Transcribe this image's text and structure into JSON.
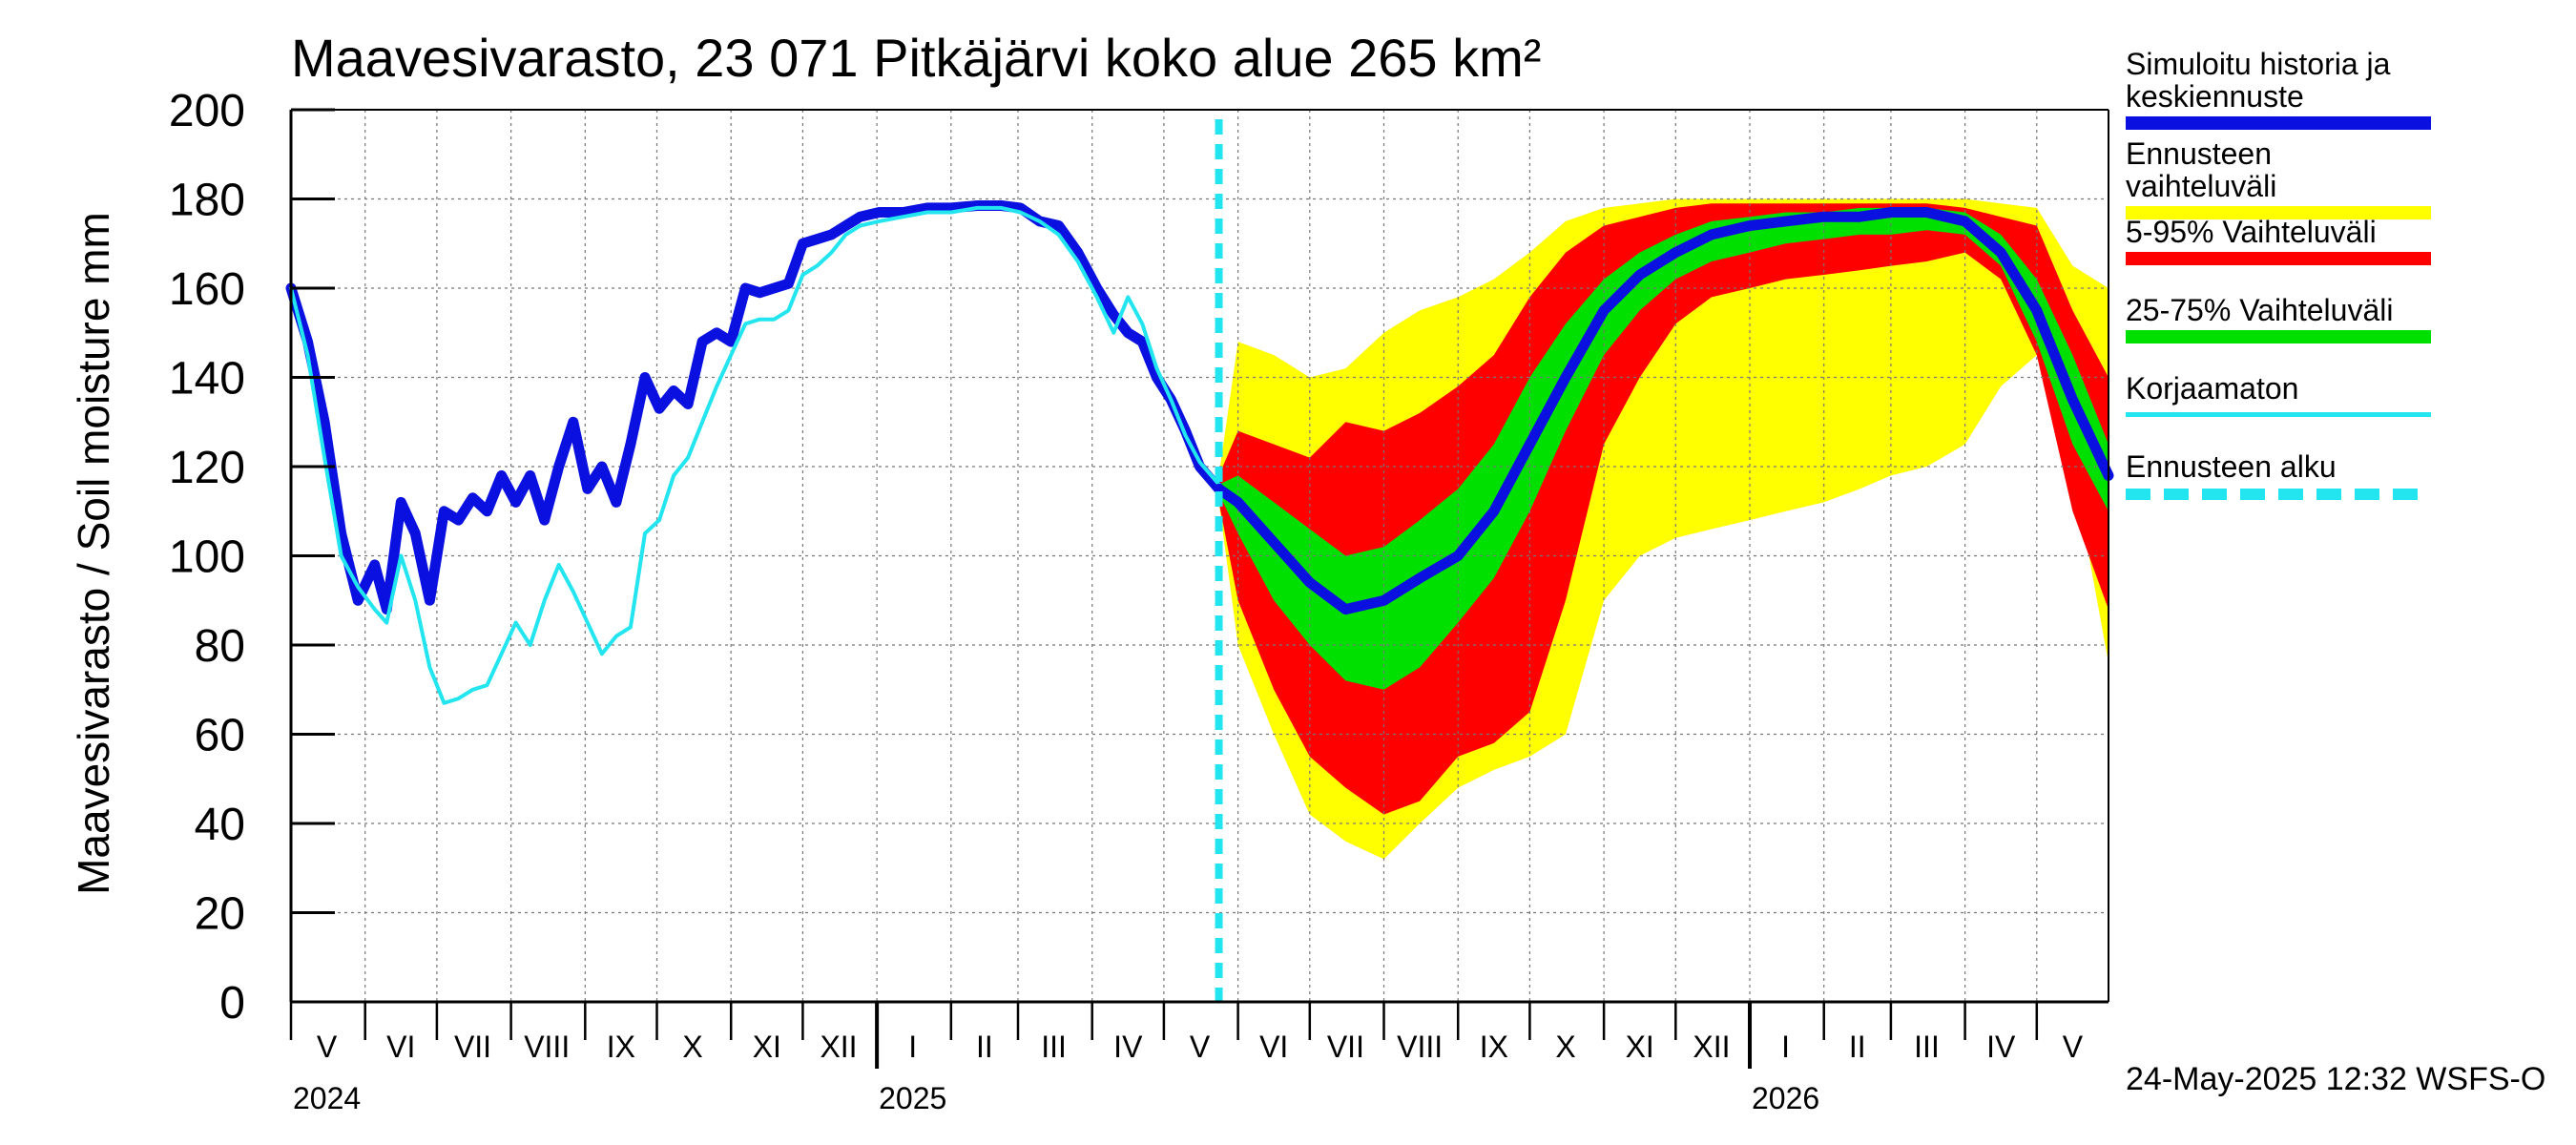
{
  "title": "Maavesivarasto, 23 071 Pitkäjärvi koko alue 265 km²",
  "ylabel": "Maavesivarasto / Soil moisture   mm",
  "footer": "24-May-2025 12:32 WSFS-O",
  "colors": {
    "history": "#0a10e0",
    "range": "#ffff00",
    "p5_95": "#ff0000",
    "p25_75": "#00e000",
    "uncorrected": "#22e5f0",
    "forecast_start": "#22e5f0"
  },
  "legend": [
    {
      "label": "Simuloitu historia ja keskiennuste",
      "key": "history"
    },
    {
      "label": "Ennusteen vaihteluväli",
      "key": "range"
    },
    {
      "label": "5-95% Vaihteluväli",
      "key": "p5_95"
    },
    {
      "label": "25-75% Vaihteluväli",
      "key": "p25_75"
    },
    {
      "label": "Korjaamaton",
      "key": "uncorrected"
    },
    {
      "label": "Ennusteen alku",
      "key": "forecast_start"
    }
  ],
  "chart_data": {
    "type": "area",
    "title": "Maavesivarasto, 23 071 Pitkäjärvi koko alue 265 km²",
    "ylabel": "Maavesivarasto / Soil moisture   mm",
    "ylim": [
      0,
      200
    ],
    "yticks": [
      0,
      20,
      40,
      60,
      80,
      100,
      120,
      140,
      160,
      180,
      200
    ],
    "xlim": [
      "2024-05-01",
      "2026-05-31"
    ],
    "grid": true,
    "legend_position": "right",
    "month_labels": [
      {
        "label": "V",
        "date": "2024-05-16"
      },
      {
        "label": "VI",
        "date": "2024-06-16"
      },
      {
        "label": "VII",
        "date": "2024-07-16"
      },
      {
        "label": "VIII",
        "date": "2024-08-16"
      },
      {
        "label": "IX",
        "date": "2024-09-16"
      },
      {
        "label": "X",
        "date": "2024-10-16"
      },
      {
        "label": "XI",
        "date": "2024-11-16"
      },
      {
        "label": "XII",
        "date": "2024-12-16"
      },
      {
        "label": "I",
        "date": "2025-01-16"
      },
      {
        "label": "II",
        "date": "2025-02-15"
      },
      {
        "label": "III",
        "date": "2025-03-16"
      },
      {
        "label": "IV",
        "date": "2025-04-16"
      },
      {
        "label": "V",
        "date": "2025-05-16"
      },
      {
        "label": "VI",
        "date": "2025-06-16"
      },
      {
        "label": "VII",
        "date": "2025-07-16"
      },
      {
        "label": "VIII",
        "date": "2025-08-16"
      },
      {
        "label": "IX",
        "date": "2025-09-16"
      },
      {
        "label": "X",
        "date": "2025-10-16"
      },
      {
        "label": "XI",
        "date": "2025-11-16"
      },
      {
        "label": "XII",
        "date": "2025-12-16"
      },
      {
        "label": "I",
        "date": "2026-01-16"
      },
      {
        "label": "II",
        "date": "2026-02-15"
      },
      {
        "label": "III",
        "date": "2026-03-16"
      },
      {
        "label": "IV",
        "date": "2026-04-16"
      },
      {
        "label": "V",
        "date": "2026-05-16"
      }
    ],
    "year_labels": [
      {
        "label": "2024",
        "date": "2024-05-01"
      },
      {
        "label": "2025",
        "date": "2025-01-01"
      },
      {
        "label": "2026",
        "date": "2026-01-01"
      }
    ],
    "forecast_start": "2025-05-24",
    "series": [
      {
        "name": "Simuloitu historia ja keskiennuste",
        "key": "history",
        "points": [
          [
            "2024-05-01",
            160
          ],
          [
            "2024-05-08",
            148
          ],
          [
            "2024-05-15",
            130
          ],
          [
            "2024-05-22",
            105
          ],
          [
            "2024-05-29",
            90
          ],
          [
            "2024-06-05",
            98
          ],
          [
            "2024-06-10",
            88
          ],
          [
            "2024-06-16",
            112
          ],
          [
            "2024-06-22",
            105
          ],
          [
            "2024-06-28",
            90
          ],
          [
            "2024-07-04",
            110
          ],
          [
            "2024-07-10",
            108
          ],
          [
            "2024-07-16",
            113
          ],
          [
            "2024-07-22",
            110
          ],
          [
            "2024-07-28",
            118
          ],
          [
            "2024-08-03",
            112
          ],
          [
            "2024-08-09",
            118
          ],
          [
            "2024-08-15",
            108
          ],
          [
            "2024-08-21",
            120
          ],
          [
            "2024-08-27",
            130
          ],
          [
            "2024-09-02",
            115
          ],
          [
            "2024-09-08",
            120
          ],
          [
            "2024-09-14",
            112
          ],
          [
            "2024-09-20",
            125
          ],
          [
            "2024-09-26",
            140
          ],
          [
            "2024-10-02",
            133
          ],
          [
            "2024-10-08",
            137
          ],
          [
            "2024-10-14",
            134
          ],
          [
            "2024-10-20",
            148
          ],
          [
            "2024-10-26",
            150
          ],
          [
            "2024-11-01",
            148
          ],
          [
            "2024-11-07",
            160
          ],
          [
            "2024-11-13",
            159
          ],
          [
            "2024-11-19",
            160
          ],
          [
            "2024-11-25",
            161
          ],
          [
            "2024-12-01",
            170
          ],
          [
            "2024-12-07",
            171
          ],
          [
            "2024-12-13",
            172
          ],
          [
            "2024-12-19",
            174
          ],
          [
            "2024-12-25",
            176
          ],
          [
            "2025-01-02",
            177
          ],
          [
            "2025-01-12",
            177
          ],
          [
            "2025-01-22",
            178
          ],
          [
            "2025-02-01",
            178
          ],
          [
            "2025-02-12",
            178.5
          ],
          [
            "2025-02-22",
            178.5
          ],
          [
            "2025-03-02",
            178
          ],
          [
            "2025-03-10",
            175
          ],
          [
            "2025-03-18",
            174
          ],
          [
            "2025-03-26",
            168
          ],
          [
            "2025-04-03",
            160
          ],
          [
            "2025-04-10",
            154
          ],
          [
            "2025-04-16",
            150
          ],
          [
            "2025-04-22",
            148
          ],
          [
            "2025-04-28",
            140
          ],
          [
            "2025-05-04",
            135
          ],
          [
            "2025-05-10",
            128
          ],
          [
            "2025-05-16",
            120
          ],
          [
            "2025-05-24",
            115
          ]
        ]
      },
      {
        "name": "Korjaamaton",
        "key": "uncorrected",
        "points": [
          [
            "2024-05-01",
            160
          ],
          [
            "2024-05-08",
            145
          ],
          [
            "2024-05-15",
            122
          ],
          [
            "2024-05-22",
            100
          ],
          [
            "2024-05-29",
            93
          ],
          [
            "2024-06-05",
            88
          ],
          [
            "2024-06-10",
            85
          ],
          [
            "2024-06-16",
            100
          ],
          [
            "2024-06-22",
            90
          ],
          [
            "2024-06-28",
            75
          ],
          [
            "2024-07-04",
            67
          ],
          [
            "2024-07-10",
            68
          ],
          [
            "2024-07-16",
            70
          ],
          [
            "2024-07-22",
            71
          ],
          [
            "2024-07-28",
            78
          ],
          [
            "2024-08-03",
            85
          ],
          [
            "2024-08-09",
            80
          ],
          [
            "2024-08-15",
            90
          ],
          [
            "2024-08-21",
            98
          ],
          [
            "2024-08-27",
            92
          ],
          [
            "2024-09-02",
            85
          ],
          [
            "2024-09-08",
            78
          ],
          [
            "2024-09-14",
            82
          ],
          [
            "2024-09-20",
            84
          ],
          [
            "2024-09-26",
            105
          ],
          [
            "2024-10-02",
            108
          ],
          [
            "2024-10-08",
            118
          ],
          [
            "2024-10-14",
            122
          ],
          [
            "2024-10-20",
            130
          ],
          [
            "2024-10-26",
            138
          ],
          [
            "2024-11-01",
            145
          ],
          [
            "2024-11-07",
            152
          ],
          [
            "2024-11-13",
            153
          ],
          [
            "2024-11-19",
            153
          ],
          [
            "2024-11-25",
            155
          ],
          [
            "2024-12-01",
            163
          ],
          [
            "2024-12-07",
            165
          ],
          [
            "2024-12-13",
            168
          ],
          [
            "2024-12-19",
            172
          ],
          [
            "2024-12-25",
            174
          ],
          [
            "2025-01-02",
            175
          ],
          [
            "2025-01-12",
            176
          ],
          [
            "2025-01-22",
            177
          ],
          [
            "2025-02-01",
            177
          ],
          [
            "2025-02-12",
            178
          ],
          [
            "2025-02-22",
            178
          ],
          [
            "2025-03-02",
            177
          ],
          [
            "2025-03-10",
            175
          ],
          [
            "2025-03-18",
            172
          ],
          [
            "2025-03-26",
            166
          ],
          [
            "2025-04-03",
            158
          ],
          [
            "2025-04-10",
            150
          ],
          [
            "2025-04-16",
            158
          ],
          [
            "2025-04-22",
            152
          ],
          [
            "2025-04-28",
            142
          ],
          [
            "2025-05-04",
            135
          ],
          [
            "2025-05-10",
            127
          ],
          [
            "2025-05-16",
            121
          ],
          [
            "2025-05-24",
            116
          ]
        ]
      },
      {
        "name": "Keskiennuste",
        "key": "history",
        "points": [
          [
            "2025-05-24",
            115
          ],
          [
            "2025-06-01",
            112
          ],
          [
            "2025-06-16",
            103
          ],
          [
            "2025-07-01",
            94
          ],
          [
            "2025-07-16",
            88
          ],
          [
            "2025-08-01",
            90
          ],
          [
            "2025-08-16",
            95
          ],
          [
            "2025-09-01",
            100
          ],
          [
            "2025-09-16",
            110
          ],
          [
            "2025-10-01",
            125
          ],
          [
            "2025-10-16",
            140
          ],
          [
            "2025-11-01",
            155
          ],
          [
            "2025-11-16",
            163
          ],
          [
            "2025-12-01",
            168
          ],
          [
            "2025-12-16",
            172
          ],
          [
            "2026-01-01",
            174
          ],
          [
            "2026-01-16",
            175
          ],
          [
            "2026-02-01",
            176
          ],
          [
            "2026-02-16",
            176
          ],
          [
            "2026-03-01",
            177
          ],
          [
            "2026-03-16",
            177
          ],
          [
            "2026-04-01",
            175
          ],
          [
            "2026-04-16",
            168
          ],
          [
            "2026-05-01",
            155
          ],
          [
            "2026-05-16",
            135
          ],
          [
            "2026-05-31",
            118
          ]
        ]
      }
    ],
    "bands": [
      {
        "name": "Ennusteen vaihteluväli",
        "key": "range",
        "dates": [
          "2025-05-24",
          "2025-06-01",
          "2025-06-16",
          "2025-07-01",
          "2025-07-16",
          "2025-08-01",
          "2025-08-16",
          "2025-09-01",
          "2025-09-16",
          "2025-10-01",
          "2025-10-16",
          "2025-11-01",
          "2025-11-16",
          "2025-12-01",
          "2025-12-16",
          "2026-01-01",
          "2026-01-16",
          "2026-02-01",
          "2026-02-16",
          "2026-03-01",
          "2026-03-16",
          "2026-04-01",
          "2026-04-16",
          "2026-05-01",
          "2026-05-16",
          "2026-05-31"
        ],
        "upper": [
          118,
          148,
          145,
          140,
          142,
          150,
          155,
          158,
          162,
          168,
          175,
          178,
          179,
          180,
          180,
          180,
          180,
          180,
          180,
          180,
          180,
          180,
          179,
          178,
          165,
          160
        ],
        "lower": [
          112,
          80,
          60,
          42,
          36,
          32,
          40,
          48,
          52,
          55,
          60,
          90,
          100,
          104,
          106,
          108,
          110,
          112,
          115,
          118,
          120,
          125,
          138,
          145,
          120,
          76
        ]
      },
      {
        "name": "5-95% Vaihteluväli",
        "key": "p5_95",
        "dates": [
          "2025-05-24",
          "2025-06-01",
          "2025-06-16",
          "2025-07-01",
          "2025-07-16",
          "2025-08-01",
          "2025-08-16",
          "2025-09-01",
          "2025-09-16",
          "2025-10-01",
          "2025-10-16",
          "2025-11-01",
          "2025-11-16",
          "2025-12-01",
          "2025-12-16",
          "2026-01-01",
          "2026-01-16",
          "2026-02-01",
          "2026-02-16",
          "2026-03-01",
          "2026-03-16",
          "2026-04-01",
          "2026-04-16",
          "2026-05-01",
          "2026-05-16",
          "2026-05-31"
        ],
        "upper": [
          118,
          128,
          125,
          122,
          130,
          128,
          132,
          138,
          145,
          158,
          168,
          174,
          176,
          178,
          179,
          179,
          179,
          179,
          179,
          179,
          179,
          178,
          176,
          174,
          155,
          140
        ],
        "lower": [
          112,
          90,
          70,
          55,
          48,
          42,
          45,
          55,
          58,
          65,
          90,
          125,
          140,
          152,
          158,
          160,
          162,
          163,
          164,
          165,
          166,
          168,
          162,
          145,
          110,
          88
        ]
      },
      {
        "name": "25-75% Vaihteluväli",
        "key": "p25_75",
        "dates": [
          "2025-05-24",
          "2025-06-01",
          "2025-06-16",
          "2025-07-01",
          "2025-07-16",
          "2025-08-01",
          "2025-08-16",
          "2025-09-01",
          "2025-09-16",
          "2025-10-01",
          "2025-10-16",
          "2025-11-01",
          "2025-11-16",
          "2025-12-01",
          "2025-12-16",
          "2026-01-01",
          "2026-01-16",
          "2026-02-01",
          "2026-02-16",
          "2026-03-01",
          "2026-03-16",
          "2026-04-01",
          "2026-04-16",
          "2026-05-01",
          "2026-05-16",
          "2026-05-31"
        ],
        "upper": [
          116,
          118,
          112,
          106,
          100,
          102,
          108,
          115,
          125,
          140,
          152,
          162,
          168,
          172,
          175,
          176,
          177,
          177,
          178,
          178,
          178,
          177,
          172,
          162,
          145,
          125
        ],
        "lower": [
          114,
          105,
          90,
          80,
          72,
          70,
          75,
          85,
          95,
          110,
          128,
          145,
          155,
          162,
          166,
          168,
          170,
          171,
          172,
          172,
          173,
          172,
          165,
          148,
          125,
          110
        ]
      }
    ]
  }
}
